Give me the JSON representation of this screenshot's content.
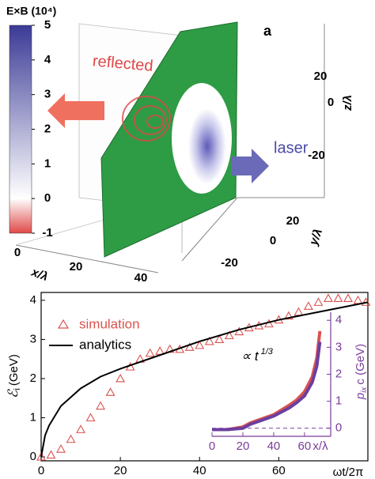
{
  "panel_a": {
    "label": "a",
    "colorbar": {
      "title": "E×B (10⁴)",
      "lim": [
        -1,
        5
      ],
      "ticks": [
        5,
        4,
        3,
        2,
        1,
        0,
        -1
      ]
    },
    "annotations": [
      "reflected",
      "laser"
    ],
    "z_label": "z/λ",
    "z_ticks": [
      20,
      0,
      -20
    ],
    "y_label": "y/λ",
    "y_ticks": [
      20,
      0,
      -20
    ],
    "x_label": "x/λ",
    "x_ticks": [
      0,
      20,
      40
    ]
  },
  "chart_data": [
    {
      "type": "line",
      "xlabel": "ωt/2π",
      "ylabel": {
        "symbol": "ℰ",
        "subscript": "i",
        "unit": "(GeV)"
      },
      "xlim": [
        0,
        82.5
      ],
      "ylim": [
        -0.1,
        4.2
      ],
      "xticks": [
        0,
        20,
        40,
        60
      ],
      "yticks": [
        0,
        1,
        2,
        3,
        4
      ],
      "annotation": {
        "text": "∝ t",
        "exponent": "1/3"
      },
      "series": [
        {
          "name": "simulation",
          "color": "#d9534f",
          "marker": "triangle",
          "x": [
            0,
            2.5,
            5,
            7.5,
            10,
            12.5,
            15,
            17.5,
            20,
            22.5,
            25,
            27.5,
            30,
            32.5,
            35,
            37.5,
            40,
            42.5,
            45,
            47.5,
            50,
            52.5,
            55,
            57.5,
            60,
            62.5,
            65,
            67.5,
            70,
            72.5,
            75,
            77.5,
            80,
            82
          ],
          "values": [
            0,
            0.05,
            0.2,
            0.45,
            0.7,
            1.0,
            1.3,
            1.65,
            2.0,
            2.3,
            2.5,
            2.65,
            2.7,
            2.75,
            2.75,
            2.8,
            2.85,
            2.95,
            3.0,
            3.1,
            3.2,
            3.3,
            3.35,
            3.4,
            3.5,
            3.6,
            3.7,
            3.85,
            3.95,
            4.05,
            4.05,
            4.05,
            4.0,
            3.95
          ]
        },
        {
          "name": "analytics",
          "color": "#000000",
          "x": [
            0,
            1,
            2,
            5,
            10,
            15,
            20,
            30,
            40,
            50,
            60,
            70,
            80,
            82.5
          ],
          "values": [
            0,
            0.55,
            0.8,
            1.3,
            1.75,
            2.05,
            2.25,
            2.6,
            2.95,
            3.25,
            3.5,
            3.7,
            3.9,
            3.95
          ]
        }
      ]
    },
    {
      "type": "line",
      "xlabel": "x/λ",
      "ylabel": {
        "symbol": "p",
        "subscript": "ix",
        "unit": "c (GeV)"
      },
      "xlim": [
        0,
        77
      ],
      "ylim": [
        -0.3,
        4.3
      ],
      "xticks": [
        0,
        20,
        40,
        60
      ],
      "yticks": [
        0,
        1,
        2,
        3,
        4
      ],
      "color": "#7a3d99",
      "series": [
        {
          "color": "#d9534f",
          "x": [
            0,
            10,
            20,
            25,
            30,
            40,
            50,
            55,
            60,
            65,
            68,
            70
          ],
          "values": [
            -0.05,
            -0.05,
            0.05,
            0.2,
            0.3,
            0.5,
            0.85,
            1.05,
            1.35,
            1.9,
            2.6,
            3.6
          ]
        },
        {
          "color": "#6b3fa0",
          "x": [
            0,
            10,
            20,
            25,
            30,
            40,
            50,
            55,
            60,
            65,
            68,
            70
          ],
          "values": [
            -0.05,
            -0.05,
            0.0,
            0.15,
            0.25,
            0.45,
            0.75,
            0.95,
            1.2,
            1.7,
            2.3,
            3.2
          ]
        }
      ]
    }
  ]
}
